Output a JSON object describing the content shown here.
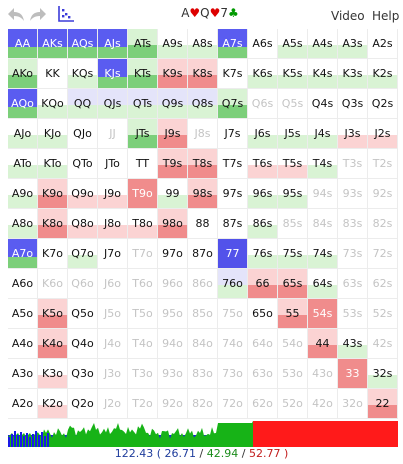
{
  "toolbar": {
    "back_icon": "undo-arrow-icon",
    "forward_icon": "redo-arrow-icon",
    "graph_icon": "scatter-graph-icon",
    "board": [
      {
        "rank": "A",
        "suit": "♥",
        "color": "red"
      },
      {
        "rank": "Q",
        "suit": "♥",
        "color": "red"
      },
      {
        "rank": "7",
        "suit": "♣",
        "color": "green"
      }
    ],
    "video_label": "Video",
    "help_label": "Help"
  },
  "colors": {
    "blue": "#5a5cf0",
    "green": "#7ccf7a",
    "light_green": "#d9f3d4",
    "red": "#f08c8c",
    "light_red": "#fbd3d3",
    "lavender": "#e4e4fa",
    "selected": "#5252ea"
  },
  "grid": {
    "rows": [
      [
        "AA",
        "AKs",
        "AQs",
        "AJs",
        "ATs",
        "A9s",
        "A8s",
        "A7s",
        "A6s",
        "A5s",
        "A4s",
        "A3s",
        "A2s"
      ],
      [
        "AKo",
        "KK",
        "KQs",
        "KJs",
        "KTs",
        "K9s",
        "K8s",
        "K7s",
        "K6s",
        "K5s",
        "K4s",
        "K3s",
        "K2s"
      ],
      [
        "AQo",
        "KQo",
        "QQ",
        "QJs",
        "QTs",
        "Q9s",
        "Q8s",
        "Q7s",
        "Q6s",
        "Q5s",
        "Q4s",
        "Q3s",
        "Q2s"
      ],
      [
        "AJo",
        "KJo",
        "QJo",
        "JJ",
        "JTs",
        "J9s",
        "J8s",
        "J7s",
        "J6s",
        "J5s",
        "J4s",
        "J3s",
        "J2s"
      ],
      [
        "ATo",
        "KTo",
        "QTo",
        "JTo",
        "TT",
        "T9s",
        "T8s",
        "T7s",
        "T6s",
        "T5s",
        "T4s",
        "T3s",
        "T2s"
      ],
      [
        "A9o",
        "K9o",
        "Q9o",
        "J9o",
        "T9o",
        "99",
        "98s",
        "97s",
        "96s",
        "95s",
        "94s",
        "93s",
        "92s"
      ],
      [
        "A8o",
        "K8o",
        "Q8o",
        "J8o",
        "T8o",
        "98o",
        "88",
        "87s",
        "86s",
        "85s",
        "84s",
        "83s",
        "82s"
      ],
      [
        "A7o",
        "K7o",
        "Q7o",
        "J7o",
        "T7o",
        "97o",
        "87o",
        "77",
        "76s",
        "75s",
        "74s",
        "73s",
        "72s"
      ],
      [
        "A6o",
        "K6o",
        "Q6o",
        "J6o",
        "T6o",
        "96o",
        "86o",
        "76o",
        "66",
        "65s",
        "64s",
        "63s",
        "62s"
      ],
      [
        "A5o",
        "K5o",
        "Q5o",
        "J5o",
        "T5o",
        "95o",
        "85o",
        "75o",
        "65o",
        "55",
        "54s",
        "53s",
        "52s"
      ],
      [
        "A4o",
        "K4o",
        "Q4o",
        "J4o",
        "T4o",
        "94o",
        "84o",
        "74o",
        "64o",
        "54o",
        "44",
        "43s",
        "42s"
      ],
      [
        "A3o",
        "K3o",
        "Q3o",
        "J3o",
        "T3o",
        "93o",
        "83o",
        "73o",
        "63o",
        "53o",
        "43o",
        "33",
        "32s"
      ],
      [
        "A2o",
        "K2o",
        "Q2o",
        "J2o",
        "T2o",
        "92o",
        "82o",
        "72o",
        "62o",
        "52o",
        "42o",
        "32o",
        "22"
      ]
    ],
    "styles": [
      [
        "b",
        "b",
        "b",
        "b",
        "g",
        "lg",
        "lg",
        "b",
        "n",
        "lg",
        "lg",
        "lg",
        "n"
      ],
      [
        "g",
        "n",
        "lg",
        "b",
        "g",
        "r",
        "r",
        "n",
        "lg",
        "lg",
        "lg",
        "lg",
        "lg"
      ],
      [
        "b",
        "lg",
        "l",
        "l",
        "l",
        "l",
        "l",
        "g",
        "d",
        "d",
        "n",
        "n",
        "n"
      ],
      [
        "lg",
        "lg",
        "n",
        "d",
        "g",
        "r",
        "d",
        "n",
        "lg",
        "lg",
        "lg",
        "lr",
        "lr"
      ],
      [
        "lg",
        "lg",
        "n",
        "n",
        "n",
        "r",
        "r",
        "n",
        "lr",
        "lr",
        "lg",
        "d",
        "d"
      ],
      [
        "lg",
        "r",
        "lr",
        "lr",
        "rs",
        "lg",
        "r",
        "n",
        "lg",
        "lg",
        "d",
        "d",
        "d"
      ],
      [
        "lg",
        "r",
        "lr",
        "lr",
        "lr",
        "r",
        "n",
        "n",
        "lg",
        "d",
        "d",
        "d",
        "d"
      ],
      [
        "b",
        "n",
        "lg",
        "n",
        "d",
        "n",
        "n",
        "bs",
        "lg",
        "lg",
        "lg",
        "d",
        "d"
      ],
      [
        "n",
        "d",
        "d",
        "d",
        "d",
        "d",
        "d",
        "l",
        "r",
        "r",
        "lg",
        "d",
        "d"
      ],
      [
        "n",
        "r",
        "n",
        "d",
        "d",
        "d",
        "d",
        "d",
        "n",
        "r",
        "rs",
        "d",
        "d"
      ],
      [
        "n",
        "r",
        "n",
        "d",
        "d",
        "d",
        "d",
        "d",
        "d",
        "d",
        "r",
        "lg",
        "d"
      ],
      [
        "n",
        "lr",
        "n",
        "d",
        "d",
        "d",
        "d",
        "d",
        "d",
        "d",
        "d",
        "rs",
        "lg"
      ],
      [
        "n",
        "lr",
        "n",
        "d",
        "d",
        "d",
        "d",
        "d",
        "d",
        "d",
        "d",
        "d",
        "r"
      ]
    ]
  },
  "equity": {
    "blue": 26.71,
    "green": 42.94,
    "red": 52.77
  },
  "summary": {
    "total": "122.43",
    "open": "(",
    "blue": "26.71",
    "sep1": "/",
    "green": "42.94",
    "sep2": "/",
    "red": "52.77",
    "close": ")"
  }
}
